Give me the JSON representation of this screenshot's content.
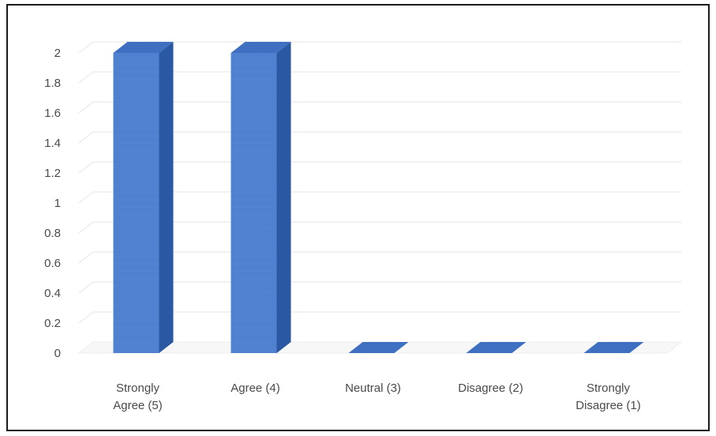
{
  "chart_data": {
    "type": "bar",
    "title": "",
    "xlabel": "",
    "ylabel": "",
    "categories": [
      [
        "Strongly",
        "Agree (5)"
      ],
      [
        "Agree (4)"
      ],
      [
        "Neutral (3)"
      ],
      [
        "Disagree (2)"
      ],
      [
        "Strongly",
        "Disagree (1)"
      ]
    ],
    "values": [
      2,
      2,
      0,
      0,
      0
    ],
    "ylim": [
      0,
      2
    ],
    "yticks": [
      "0",
      "0.2",
      "0.4",
      "0.6",
      "0.8",
      "1",
      "1.2",
      "1.4",
      "1.6",
      "1.8",
      "2"
    ],
    "grid": true,
    "legend": "none",
    "three_d": true,
    "colors": {
      "bar_front": "#4f81d0",
      "bar_side": "#2b58a3",
      "bar_top": "#3e6fc0",
      "gridline": "#e6e6e6",
      "text": "#4a4a4a"
    }
  }
}
